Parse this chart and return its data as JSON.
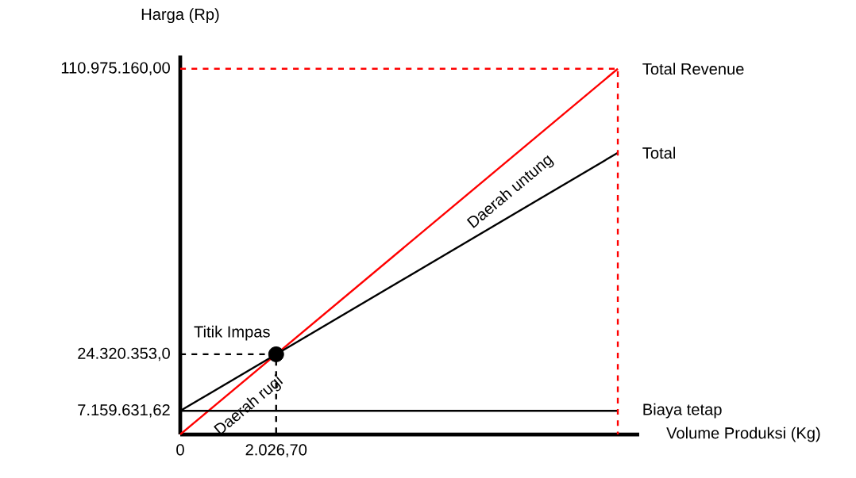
{
  "chart_data": {
    "type": "line",
    "xlabel": "Volume Produksi (Kg)",
    "ylabel": "Harga (Rp)",
    "xlim": [
      0,
      9700
    ],
    "ylim": [
      0,
      115000000
    ],
    "xticks": [
      0,
      {
        "value": 2026.7,
        "label": "2.026,70"
      }
    ],
    "yticks": [
      {
        "value": 7159631.62,
        "label": "7.159.631,62"
      },
      {
        "value": 24320353,
        "label": "24.320.353,0"
      },
      {
        "value": 110975160,
        "label": "110.975.160,00"
      }
    ],
    "series": [
      {
        "name": "Total Revenue",
        "color": "#ff0000",
        "x": [
          0,
          9248
        ],
        "values": [
          0,
          110975160
        ],
        "marker": "none",
        "line_style": "solid"
      },
      {
        "name": "Total",
        "color": "#000000",
        "x": [
          0,
          9248
        ],
        "values": [
          7159631.62,
          85465500
        ],
        "marker": "none",
        "line_style": "solid"
      },
      {
        "name": "Biaya tetap",
        "color": "#000000",
        "x": [
          0,
          9248
        ],
        "values": [
          7159631.62,
          7159631.62
        ],
        "marker": "none",
        "line_style": "solid"
      },
      {
        "color": "#ff0000",
        "x": [
          0,
          9248,
          9248
        ],
        "values": [
          110975160,
          110975160,
          0
        ],
        "marker": "none",
        "line_style": "dashed"
      },
      {
        "color": "#000000",
        "x": [
          0,
          2026.7,
          2026.7
        ],
        "values": [
          24320353,
          24320353,
          0
        ],
        "marker": "none",
        "line_style": "dashed"
      },
      {
        "type": "scatter",
        "color": "#000000",
        "x": [
          2026.7
        ],
        "values": [
          24320353
        ],
        "marker": "circle"
      }
    ],
    "annotations": [
      {
        "text": "Titik Impas",
        "x": 2026.7,
        "y": 24320353
      },
      "Daerah untung",
      "Daerah rugi"
    ]
  }
}
